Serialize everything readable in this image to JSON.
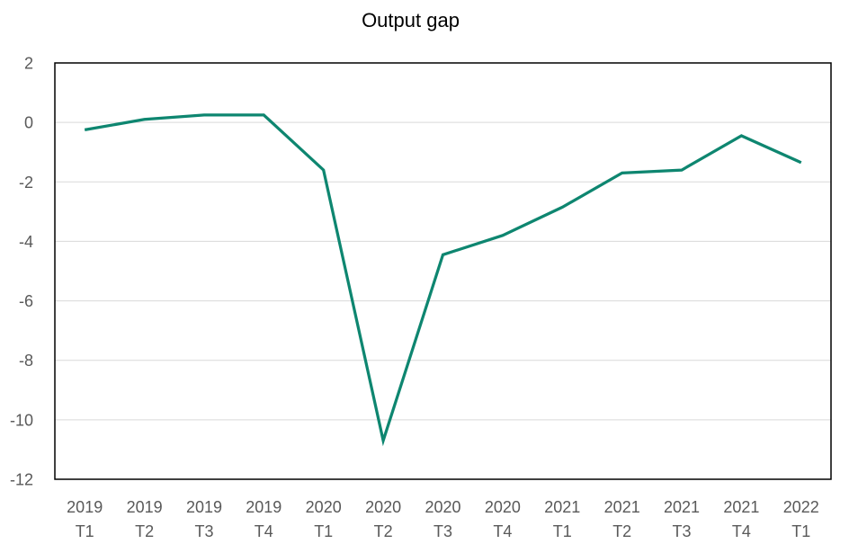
{
  "chart_data": {
    "type": "line",
    "title": "Output gap",
    "categories": [
      {
        "year": "2019",
        "quarter": "T1"
      },
      {
        "year": "2019",
        "quarter": "T2"
      },
      {
        "year": "2019",
        "quarter": "T3"
      },
      {
        "year": "2019",
        "quarter": "T4"
      },
      {
        "year": "2020",
        "quarter": "T1"
      },
      {
        "year": "2020",
        "quarter": "T2"
      },
      {
        "year": "2020",
        "quarter": "T3"
      },
      {
        "year": "2020",
        "quarter": "T4"
      },
      {
        "year": "2021",
        "quarter": "T1"
      },
      {
        "year": "2021",
        "quarter": "T2"
      },
      {
        "year": "2021",
        "quarter": "T3"
      },
      {
        "year": "2021",
        "quarter": "T4"
      },
      {
        "year": "2022",
        "quarter": "T1"
      }
    ],
    "values": [
      -0.25,
      0.1,
      0.25,
      0.25,
      -1.6,
      -10.7,
      -4.45,
      -3.8,
      -2.85,
      -1.7,
      -1.6,
      -0.45,
      -1.35
    ],
    "xlabel": "",
    "ylabel": "",
    "ylim": [
      -12,
      2
    ],
    "yticks": [
      2,
      0,
      -2,
      -4,
      -6,
      -8,
      -10,
      -12
    ],
    "grid": "horizontal",
    "legend": "none",
    "colors": {
      "line": "#0e8670",
      "grid": "#d9d9d9",
      "border": "#000000",
      "tick_label": "#595959",
      "title": "#000000",
      "background": "#ffffff"
    }
  }
}
